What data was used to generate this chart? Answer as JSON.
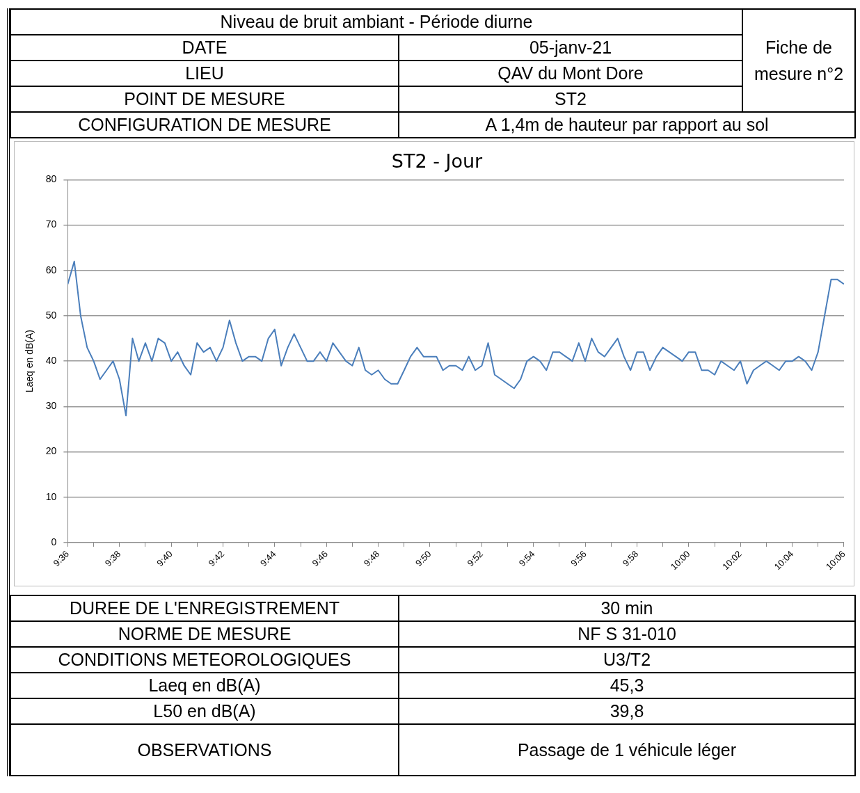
{
  "chart_data": {
    "type": "line",
    "title": "ST2 - Jour",
    "ylabel": "Laeq en dB(A)",
    "annotations": [
      "Niveau de bruit ambiant - Période diurne",
      "Fiche de mesure n°2",
      "DATE",
      "05-janv-21",
      "LIEU",
      "QAV du Mont Dore",
      "POINT DE MESURE",
      "ST2",
      "CONFIGURATION DE MESURE",
      "A 1,4m de hauteur par rapport au sol",
      "DUREE DE L'ENREGISTREMENT",
      "30 min",
      "NORME DE MESURE",
      "NF S 31-010",
      "CONDITIONS METEOROLOGIQUES",
      "U3/T2",
      "Laeq en dB(A)",
      "45,3",
      "L50 en dB(A)",
      "39,8",
      "OBSERVATIONS",
      "Passage de 1 véhicule léger"
    ],
    "x": [
      9.6,
      9.6042,
      9.6083,
      9.6125,
      9.6167,
      9.6208,
      9.625,
      9.6292,
      9.6333,
      9.6375,
      9.6417,
      9.6458,
      9.65,
      9.6542,
      9.6583,
      9.6625,
      9.6667,
      9.6708,
      9.675,
      9.6792,
      9.6833,
      9.6875,
      9.6917,
      9.6958,
      9.7,
      9.7042,
      9.7083,
      9.7125,
      9.7167,
      9.7208,
      9.725,
      9.7292,
      9.7333,
      9.7375,
      9.7417,
      9.7458,
      9.75,
      9.7542,
      9.7583,
      9.7625,
      9.7667,
      9.7708,
      9.775,
      9.7792,
      9.7833,
      9.7875,
      9.7917,
      9.7958,
      9.8,
      9.8042,
      9.8083,
      9.8125,
      9.8167,
      9.8208,
      9.825,
      9.8292,
      9.8333,
      9.8375,
      9.8417,
      9.8458,
      9.85,
      9.8542,
      9.8583,
      9.8625,
      9.8667,
      9.8708,
      9.875,
      9.8792,
      9.8833,
      9.8875,
      9.8917,
      9.8958,
      9.9,
      9.9042,
      9.9083,
      9.9125,
      9.9167,
      9.9208,
      9.925,
      9.9292,
      9.9333,
      9.9375,
      9.9417,
      9.9458,
      9.95,
      9.9542,
      9.9583,
      9.9625,
      9.9667,
      9.9708,
      9.975,
      9.9792,
      9.9833,
      9.9875,
      9.9917,
      9.9958,
      10,
      10.0042,
      10.0083,
      10.0125,
      10.0167,
      10.0208,
      10.025,
      10.0292,
      10.0333,
      10.0375,
      10.0417,
      10.0458,
      10.05,
      10.0542,
      10.0583,
      10.0625,
      10.0667,
      10.0708,
      10.075,
      10.0792,
      10.0833,
      10.0875,
      10.0917,
      10.0958,
      10.1
    ],
    "series": [
      {
        "color": "#4a7ebb",
        "values": [
          57,
          62,
          50,
          43,
          40,
          36,
          38,
          40,
          36,
          28,
          45,
          40,
          44,
          40,
          45,
          44,
          40,
          42,
          39,
          37,
          44,
          42,
          43,
          40,
          43,
          49,
          44,
          40,
          41,
          41,
          40,
          45,
          47,
          39,
          43,
          46,
          43,
          40,
          40,
          42,
          40,
          44,
          42,
          40,
          39,
          43,
          38,
          37,
          38,
          36,
          35,
          35,
          38,
          41,
          43,
          41,
          41,
          41,
          38,
          39,
          39,
          38,
          41,
          38,
          39,
          44,
          37,
          36,
          35,
          34,
          36,
          40,
          41,
          40,
          38,
          42,
          42,
          41,
          40,
          44,
          40,
          45,
          42,
          41,
          43,
          45,
          41,
          38,
          42,
          42,
          38,
          41,
          43,
          42,
          41,
          40,
          42,
          42,
          38,
          38,
          37,
          40,
          39,
          38,
          40,
          35,
          38,
          39,
          40,
          39,
          38,
          40,
          40,
          41,
          40,
          38,
          42,
          50,
          58,
          58,
          57
        ]
      }
    ],
    "xlim": [
      9.6,
      10.1
    ],
    "xticks": [
      {
        "value": 9.6,
        "label": "9:36"
      },
      {
        "value": 9.6167,
        "label": null
      },
      {
        "value": 9.6333,
        "label": "9:38"
      },
      {
        "value": 9.65,
        "label": null
      },
      {
        "value": 9.6667,
        "label": "9:40"
      },
      {
        "value": 9.6833,
        "label": null
      },
      {
        "value": 9.7,
        "label": "9:42"
      },
      {
        "value": 9.7167,
        "label": null
      },
      {
        "value": 9.7333,
        "label": "9:44"
      },
      {
        "value": 9.75,
        "label": null
      },
      {
        "value": 9.7667,
        "label": "9:46"
      },
      {
        "value": 9.7833,
        "label": null
      },
      {
        "value": 9.8,
        "label": "9:48"
      },
      {
        "value": 9.8167,
        "label": null
      },
      {
        "value": 9.8333,
        "label": "9:50"
      },
      {
        "value": 9.85,
        "label": null
      },
      {
        "value": 9.8667,
        "label": "9:52"
      },
      {
        "value": 9.8833,
        "label": null
      },
      {
        "value": 9.9,
        "label": "9:54"
      },
      {
        "value": 9.9167,
        "label": null
      },
      {
        "value": 9.9333,
        "label": "9:56"
      },
      {
        "value": 9.95,
        "label": null
      },
      {
        "value": 9.9667,
        "label": "9:58"
      },
      {
        "value": 9.9833,
        "label": null
      },
      {
        "value": 10,
        "label": "10:00"
      },
      {
        "value": 10.0167,
        "label": null
      },
      {
        "value": 10.0333,
        "label": "10:02"
      },
      {
        "value": 10.05,
        "label": null
      },
      {
        "value": 10.0667,
        "label": "10:04"
      },
      {
        "value": 10.0833,
        "label": null
      },
      {
        "value": 10.1,
        "label": "10:06"
      }
    ],
    "ylim": [
      0,
      80
    ],
    "yticks": [
      0,
      10,
      20,
      30,
      40,
      50,
      60,
      70,
      80
    ],
    "grid": "y",
    "legend": false,
    "marker": "none",
    "line_style": "solid"
  }
}
